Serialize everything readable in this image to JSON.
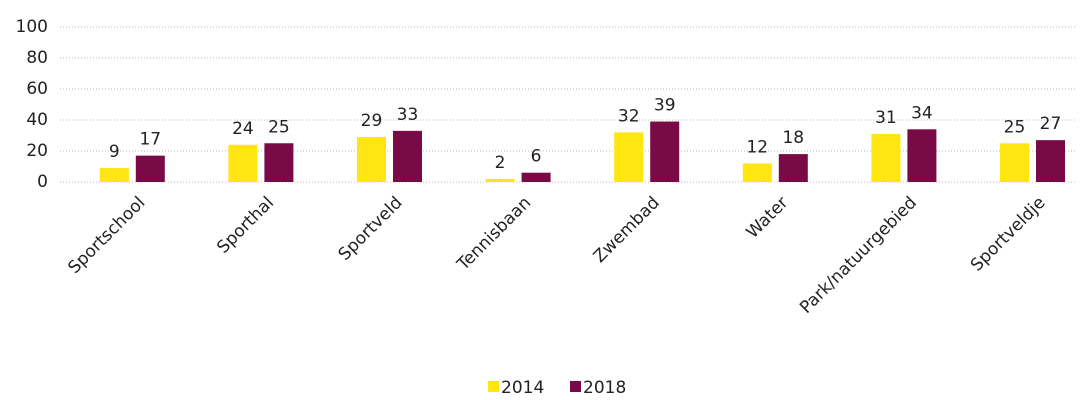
{
  "chart_data": {
    "type": "bar",
    "categories": [
      "Sportschool",
      "Sporthal",
      "Sportveld",
      "Tennisbaan",
      "Zwembad",
      "Water",
      "Park/natuurgebied",
      "Sportveldje"
    ],
    "series": [
      {
        "name": "2014",
        "color": "#ffe512",
        "values": [
          9,
          24,
          29,
          2,
          32,
          12,
          31,
          25
        ]
      },
      {
        "name": "2018",
        "color": "#7a0a45",
        "values": [
          17,
          25,
          33,
          6,
          39,
          18,
          34,
          27
        ]
      }
    ],
    "ylim": [
      0,
      100
    ],
    "yticks": [
      0,
      20,
      40,
      60,
      80,
      100
    ],
    "grid": true,
    "legend": "bottom"
  }
}
